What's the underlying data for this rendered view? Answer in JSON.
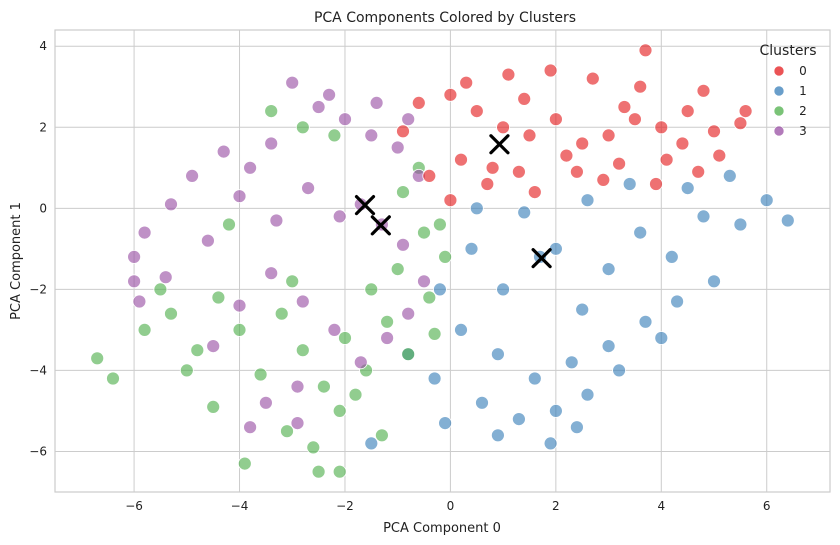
{
  "chart_data": {
    "type": "scatter",
    "title": "PCA Components Colored by Clusters",
    "xlabel": "PCA Component 0",
    "ylabel": "PCA Component 1",
    "xlim": [
      -7.5,
      7.2
    ],
    "ylim": [
      -7.0,
      4.4
    ],
    "xticks": [
      -6,
      -4,
      -2,
      0,
      2,
      4,
      6
    ],
    "yticks": [
      -6,
      -4,
      -2,
      0,
      2,
      4
    ],
    "xtick_labels": [
      "−6",
      "−4",
      "−2",
      "0",
      "2",
      "4",
      "6"
    ],
    "ytick_labels": [
      "−6",
      "−4",
      "−2",
      "0",
      "2",
      "4"
    ],
    "grid": true,
    "legend": {
      "title": "Clusters",
      "placement": "top-right",
      "entries": [
        {
          "label": "0",
          "color": "#e41a1c"
        },
        {
          "label": "1",
          "color": "#377eb8"
        },
        {
          "label": "2",
          "color": "#4daf4a"
        },
        {
          "label": "3",
          "color": "#984ea3"
        }
      ]
    },
    "series": [
      {
        "label": "0",
        "color": "#e41a1c",
        "points": [
          [
            0.0,
            2.8
          ],
          [
            0.5,
            2.4
          ],
          [
            1.0,
            2.0
          ],
          [
            1.5,
            1.8
          ],
          [
            2.0,
            2.2
          ],
          [
            2.5,
            1.6
          ],
          [
            3.0,
            1.8
          ],
          [
            3.5,
            2.2
          ],
          [
            4.0,
            2.0
          ],
          [
            4.5,
            2.4
          ],
          [
            5.0,
            1.9
          ],
          [
            0.2,
            1.2
          ],
          [
            0.8,
            1.0
          ],
          [
            1.3,
            0.9
          ],
          [
            2.4,
            0.9
          ],
          [
            3.2,
            1.1
          ],
          [
            4.1,
            1.2
          ],
          [
            5.1,
            1.3
          ],
          [
            5.5,
            2.1
          ],
          [
            4.8,
            2.9
          ],
          [
            3.6,
            3.0
          ],
          [
            2.7,
            3.2
          ],
          [
            1.9,
            3.4
          ],
          [
            1.1,
            3.3
          ],
          [
            0.3,
            3.1
          ],
          [
            -0.6,
            2.6
          ],
          [
            -0.9,
            1.9
          ],
          [
            -0.4,
            0.8
          ],
          [
            0.0,
            0.2
          ],
          [
            0.7,
            0.6
          ],
          [
            1.6,
            0.4
          ],
          [
            2.9,
            0.7
          ],
          [
            3.9,
            0.6
          ],
          [
            4.7,
            0.9
          ],
          [
            5.6,
            2.4
          ],
          [
            3.7,
            3.9
          ],
          [
            1.4,
            2.7
          ],
          [
            2.2,
            1.3
          ],
          [
            3.3,
            2.5
          ],
          [
            4.4,
            1.6
          ]
        ]
      },
      {
        "label": "1",
        "color": "#377eb8",
        "points": [
          [
            0.4,
            -1.0
          ],
          [
            1.0,
            -2.0
          ],
          [
            1.7,
            -1.2
          ],
          [
            2.5,
            -2.5
          ],
          [
            3.0,
            -1.5
          ],
          [
            3.6,
            -0.6
          ],
          [
            4.2,
            -1.2
          ],
          [
            4.8,
            -0.2
          ],
          [
            5.5,
            -0.4
          ],
          [
            6.0,
            0.2
          ],
          [
            6.4,
            -0.3
          ],
          [
            0.2,
            -3.0
          ],
          [
            0.9,
            -3.6
          ],
          [
            1.6,
            -4.2
          ],
          [
            2.3,
            -3.8
          ],
          [
            3.0,
            -3.4
          ],
          [
            3.7,
            -2.8
          ],
          [
            4.3,
            -2.3
          ],
          [
            5.0,
            -1.8
          ],
          [
            0.6,
            -4.8
          ],
          [
            1.3,
            -5.2
          ],
          [
            2.0,
            -5.0
          ],
          [
            2.6,
            -4.6
          ],
          [
            -0.3,
            -4.2
          ],
          [
            -0.8,
            -3.6
          ],
          [
            -0.2,
            -2.0
          ],
          [
            0.5,
            0.0
          ],
          [
            1.4,
            -0.1
          ],
          [
            2.6,
            0.2
          ],
          [
            3.4,
            0.6
          ],
          [
            4.5,
            0.5
          ],
          [
            5.3,
            0.8
          ],
          [
            -1.5,
            -5.8
          ],
          [
            -0.1,
            -5.3
          ],
          [
            0.9,
            -5.6
          ],
          [
            1.9,
            -5.8
          ],
          [
            2.4,
            -5.4
          ],
          [
            4.0,
            -3.2
          ],
          [
            3.2,
            -4.0
          ],
          [
            2.0,
            -1.0
          ]
        ]
      },
      {
        "label": "2",
        "color": "#4daf4a",
        "points": [
          [
            -6.7,
            -3.7
          ],
          [
            -6.4,
            -4.2
          ],
          [
            -5.8,
            -3.0
          ],
          [
            -5.3,
            -2.6
          ],
          [
            -4.8,
            -3.5
          ],
          [
            -4.4,
            -2.2
          ],
          [
            -4.0,
            -3.0
          ],
          [
            -3.6,
            -4.1
          ],
          [
            -3.2,
            -2.6
          ],
          [
            -2.8,
            -3.5
          ],
          [
            -2.4,
            -4.4
          ],
          [
            -2.0,
            -3.2
          ],
          [
            -1.6,
            -4.0
          ],
          [
            -1.2,
            -2.8
          ],
          [
            -0.8,
            -3.6
          ],
          [
            -0.4,
            -2.2
          ],
          [
            -0.1,
            -1.2
          ],
          [
            -0.5,
            -0.6
          ],
          [
            -1.0,
            -1.5
          ],
          [
            -1.5,
            -2.0
          ],
          [
            -2.1,
            -5.0
          ],
          [
            -2.6,
            -5.9
          ],
          [
            -3.1,
            -5.5
          ],
          [
            -3.9,
            -6.3
          ],
          [
            -4.5,
            -4.9
          ],
          [
            -5.0,
            -4.0
          ],
          [
            -5.5,
            -2.0
          ],
          [
            -3.4,
            2.4
          ],
          [
            -2.8,
            2.0
          ],
          [
            -2.2,
            1.8
          ],
          [
            -0.9,
            0.4
          ],
          [
            -0.6,
            1.0
          ],
          [
            -0.2,
            -0.4
          ],
          [
            -1.8,
            -4.6
          ],
          [
            -2.5,
            -6.5
          ],
          [
            -2.1,
            -6.5
          ],
          [
            -4.2,
            -0.4
          ],
          [
            -3.0,
            -1.8
          ],
          [
            -0.3,
            -3.1
          ],
          [
            -1.3,
            -5.6
          ]
        ]
      },
      {
        "label": "3",
        "color": "#984ea3",
        "points": [
          [
            -3.0,
            3.1
          ],
          [
            -2.5,
            2.5
          ],
          [
            -2.0,
            2.2
          ],
          [
            -1.5,
            1.8
          ],
          [
            -1.0,
            1.5
          ],
          [
            -0.6,
            0.8
          ],
          [
            -3.4,
            1.6
          ],
          [
            -3.8,
            1.0
          ],
          [
            -4.3,
            1.4
          ],
          [
            -4.9,
            0.8
          ],
          [
            -5.3,
            0.1
          ],
          [
            -5.8,
            -0.6
          ],
          [
            -6.0,
            -1.2
          ],
          [
            -5.4,
            -1.7
          ],
          [
            -4.6,
            -0.8
          ],
          [
            -4.0,
            0.3
          ],
          [
            -3.3,
            -0.3
          ],
          [
            -2.7,
            0.5
          ],
          [
            -2.1,
            -0.2
          ],
          [
            -1.7,
            0.1
          ],
          [
            -1.3,
            -0.4
          ],
          [
            -0.9,
            -0.9
          ],
          [
            -0.5,
            -1.8
          ],
          [
            -0.8,
            -2.6
          ],
          [
            -1.2,
            -3.2
          ],
          [
            -1.7,
            -3.8
          ],
          [
            -2.2,
            -3.0
          ],
          [
            -2.8,
            -2.3
          ],
          [
            -3.4,
            -1.6
          ],
          [
            -4.0,
            -2.4
          ],
          [
            -4.5,
            -3.4
          ],
          [
            -3.5,
            -4.8
          ],
          [
            -2.9,
            -5.3
          ],
          [
            -3.8,
            -5.4
          ],
          [
            -5.9,
            -2.3
          ],
          [
            -6.0,
            -1.8
          ],
          [
            -2.3,
            2.8
          ],
          [
            -1.4,
            2.6
          ],
          [
            -0.8,
            2.2
          ],
          [
            -2.9,
            -4.4
          ]
        ]
      }
    ],
    "centroids": [
      {
        "cluster": "0",
        "x": 0.93,
        "y": 1.58
      },
      {
        "cluster": "1",
        "x": 1.73,
        "y": -1.23
      },
      {
        "cluster": "2",
        "x": -1.62,
        "y": 0.08
      },
      {
        "cluster": "3",
        "x": -1.32,
        "y": -0.42
      }
    ]
  }
}
